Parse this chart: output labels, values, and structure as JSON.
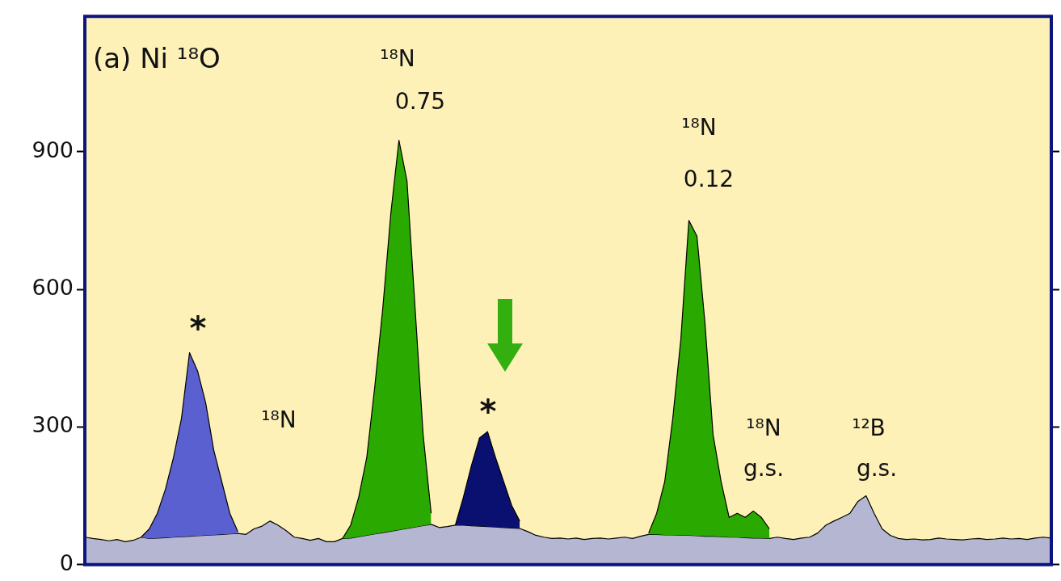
{
  "chart_data": {
    "type": "area",
    "title": "(a) Ni ¹⁸O",
    "annotations": [
      "*",
      "¹⁸N",
      "¹⁸N",
      "0.75",
      "*",
      "¹⁸N",
      "0.12",
      "¹⁸N",
      "g.s.",
      "¹²B",
      "g.s."
    ],
    "categories": [
      null,
      null,
      null,
      null,
      null,
      null,
      null,
      null,
      null,
      null,
      null,
      null,
      null,
      null,
      null,
      null,
      null,
      null,
      null,
      null,
      null,
      null,
      null,
      null,
      null,
      null,
      null,
      null,
      null,
      null,
      null,
      null,
      null,
      null,
      null,
      null,
      null,
      null,
      null,
      null,
      null,
      null,
      null,
      null,
      null,
      null,
      null,
      null,
      null,
      null,
      null,
      null,
      null,
      null,
      null,
      null,
      null,
      null,
      null,
      null,
      null,
      null,
      null,
      null,
      null,
      null,
      null,
      null,
      null,
      null,
      null,
      null,
      null,
      null,
      null,
      null,
      null,
      null,
      null,
      null,
      null,
      null,
      null,
      null,
      null,
      null,
      null,
      null,
      null,
      null,
      null,
      null,
      null,
      null,
      null,
      null,
      null,
      null,
      null,
      null,
      null,
      null,
      null,
      null,
      null,
      null,
      null,
      null,
      null,
      null,
      null,
      null,
      null,
      null,
      null,
      null,
      null,
      null,
      null,
      null,
      null
    ],
    "stacked": true,
    "grid": false,
    "legend": false,
    "ylim": [
      0,
      1195
    ],
    "yticks": [
      0,
      300,
      600,
      900
    ],
    "series": [
      {
        "color": "#b4b6d2",
        "values": [
          60,
          57,
          55,
          52,
          55,
          50,
          53,
          60,
          57,
          58,
          59,
          60,
          61,
          62,
          63,
          64,
          65,
          66,
          67,
          68,
          66,
          78,
          84,
          95,
          86,
          74,
          60,
          57,
          53,
          57,
          50,
          50,
          57,
          58,
          61,
          64,
          67,
          70,
          73,
          76,
          79,
          82,
          85,
          88,
          81,
          83,
          86,
          86,
          85,
          84,
          83,
          82,
          81,
          80,
          79,
          72,
          64,
          60,
          57,
          58,
          56,
          58,
          55,
          57,
          58,
          56,
          58,
          60,
          57,
          62,
          66,
          66,
          65,
          65,
          64,
          64,
          63,
          62,
          62,
          61,
          60,
          60,
          59,
          58,
          58,
          57,
          60,
          57,
          55,
          58,
          60,
          69,
          86,
          95,
          103,
          112,
          138,
          150,
          112,
          78,
          64,
          57,
          55,
          56,
          54,
          55,
          58,
          56,
          55,
          54,
          56,
          57,
          55,
          56,
          58,
          56,
          57,
          55,
          58,
          60,
          58
        ]
      },
      {
        "color": "#5a60d0",
        "values": [
          null,
          null,
          null,
          null,
          null,
          null,
          null,
          0,
          21,
          54,
          105,
          173,
          258,
          400,
          359,
          289,
          185,
          115,
          45,
          4,
          null,
          null,
          null,
          null,
          null,
          null,
          null,
          null,
          null,
          null,
          null,
          null,
          null,
          null,
          null,
          null,
          null,
          null,
          null,
          null,
          null,
          null,
          null,
          null,
          null,
          null,
          null,
          null,
          null,
          null,
          null,
          null,
          null,
          null,
          null,
          null,
          null,
          null,
          null,
          null,
          null,
          null,
          null,
          null,
          null,
          null,
          null,
          null,
          null,
          null,
          null,
          null,
          null,
          null,
          null,
          null,
          null,
          null,
          null,
          null,
          null,
          null,
          null,
          null,
          null,
          null,
          null,
          null,
          null,
          null,
          null,
          null,
          null,
          null,
          null,
          null,
          null,
          null,
          null,
          null,
          null,
          null,
          null,
          null,
          null,
          null,
          null,
          null,
          null,
          null,
          null,
          null,
          null,
          null,
          null,
          null,
          null,
          null,
          null,
          null,
          null
        ]
      },
      {
        "color": "#2aaa00",
        "values": [
          null,
          null,
          null,
          null,
          null,
          null,
          null,
          null,
          null,
          null,
          null,
          null,
          null,
          null,
          null,
          null,
          null,
          null,
          null,
          null,
          null,
          null,
          null,
          null,
          null,
          null,
          null,
          null,
          null,
          null,
          null,
          null,
          0,
          28,
          86,
          169,
          321,
          490,
          694,
          849,
          757,
          478,
          199,
          24,
          null,
          null,
          null,
          null,
          null,
          null,
          null,
          null,
          null,
          null,
          null,
          null,
          null,
          null,
          null,
          null,
          null,
          null,
          null,
          null,
          null,
          null,
          null,
          null,
          null,
          null,
          3,
          46,
          116,
          254,
          427,
          686,
          653,
          464,
          222,
          120,
          43,
          52,
          44,
          59,
          45,
          21,
          null,
          null,
          null,
          null,
          null,
          null,
          null,
          null,
          null,
          null,
          null,
          null,
          null,
          null,
          null,
          null,
          null,
          null,
          null,
          null,
          null,
          null,
          null,
          null,
          null,
          null,
          null,
          null,
          null,
          null,
          null,
          null,
          null,
          null,
          null
        ]
      },
      {
        "color": "#0a1070",
        "values": [
          null,
          null,
          null,
          null,
          null,
          null,
          null,
          null,
          null,
          null,
          null,
          null,
          null,
          null,
          null,
          null,
          null,
          null,
          null,
          null,
          null,
          null,
          null,
          null,
          null,
          null,
          null,
          null,
          null,
          null,
          null,
          null,
          null,
          null,
          null,
          null,
          null,
          null,
          null,
          null,
          null,
          null,
          null,
          null,
          null,
          null,
          0,
          61,
          131,
          192,
          207,
          151,
          100,
          49,
          16,
          null,
          null,
          null,
          null,
          null,
          null,
          null,
          null,
          null,
          null,
          null,
          null,
          null,
          null,
          null,
          null,
          null,
          null,
          null,
          null,
          null,
          null,
          null,
          null,
          null,
          null,
          null,
          null,
          null,
          null,
          null,
          null,
          null,
          null,
          null,
          null,
          null,
          null,
          null,
          null,
          null,
          null,
          null,
          null,
          null,
          null,
          null,
          null,
          null,
          null,
          null,
          null,
          null,
          null,
          null,
          null,
          null,
          null,
          null,
          null,
          null,
          null,
          null,
          null,
          null,
          null
        ]
      }
    ]
  }
}
